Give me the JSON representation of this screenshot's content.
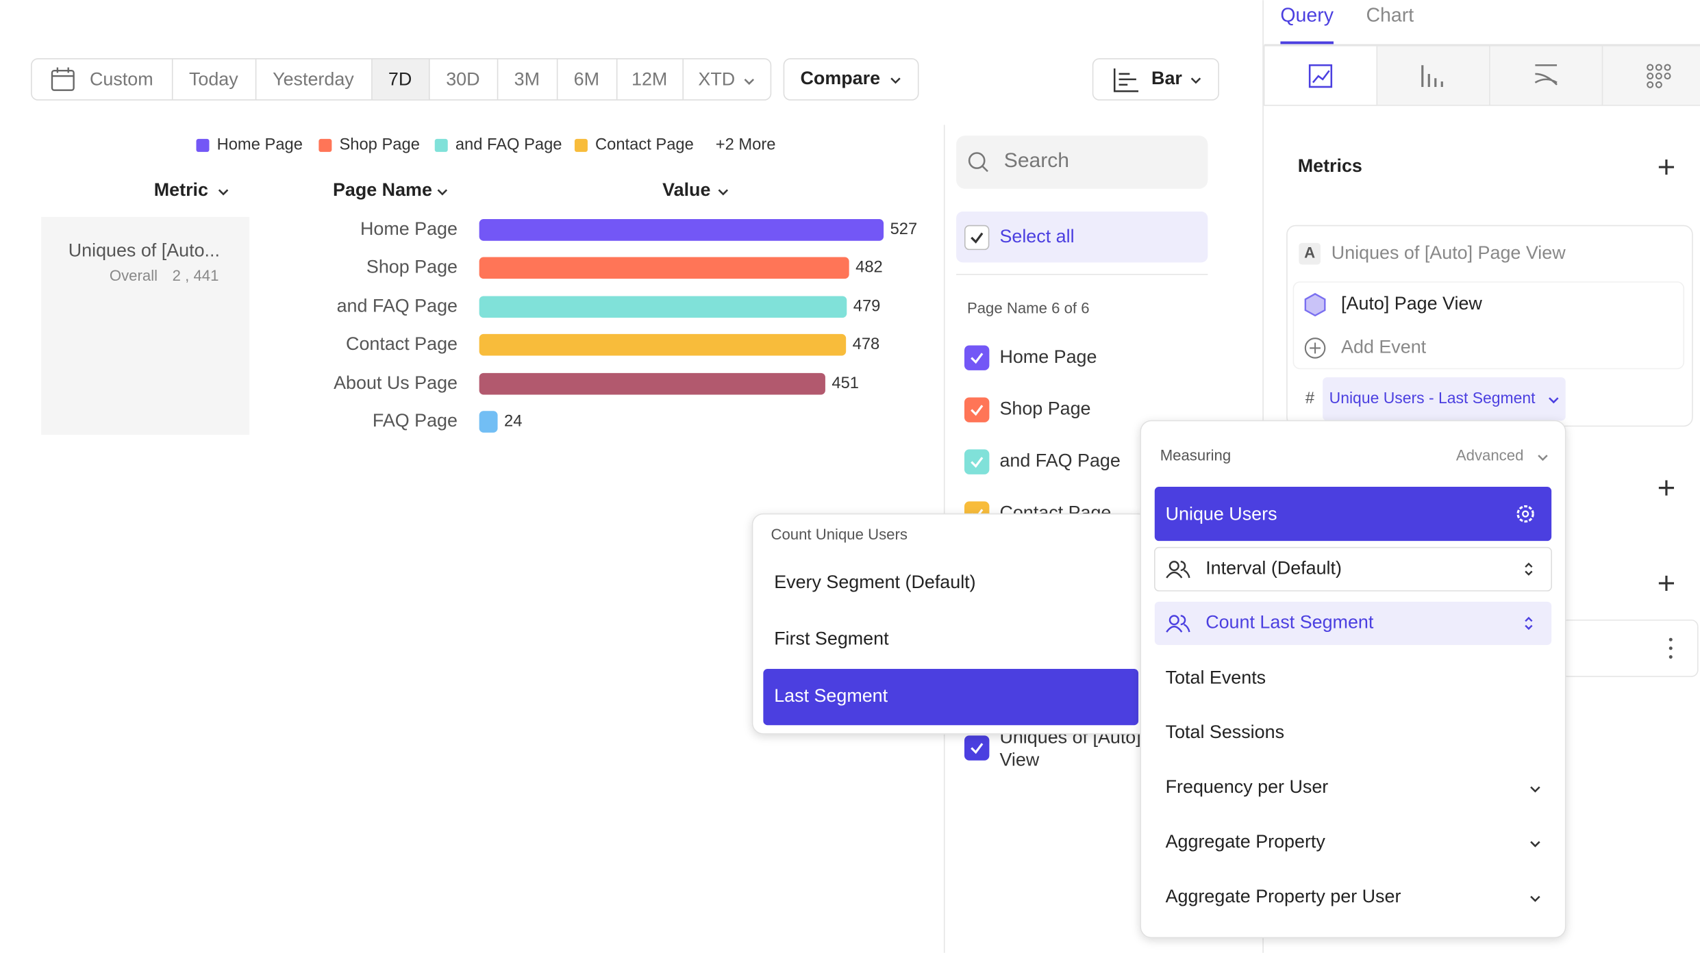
{
  "toolbar": {
    "ranges": [
      "Custom",
      "Today",
      "Yesterday",
      "7D",
      "30D",
      "3M",
      "6M",
      "12M",
      "XTD"
    ],
    "selected": "7D",
    "compare": "Compare",
    "chart_type": "Bar"
  },
  "legend": {
    "items": [
      {
        "name": "Home Page",
        "color": "#7357f6"
      },
      {
        "name": "Shop Page",
        "color": "#ff7557"
      },
      {
        "name": "and FAQ Page",
        "color": "#80e1d9"
      },
      {
        "name": "Contact Page",
        "color": "#f8bc3b"
      }
    ],
    "more": "+2 More"
  },
  "table": {
    "headers": [
      "Metric",
      "Page Name",
      "Value"
    ],
    "metric": {
      "name": "Uniques of [Auto...",
      "overall_label": "Overall",
      "overall": "2 , 441"
    }
  },
  "chart_data": {
    "type": "bar",
    "orientation": "horizontal",
    "categories": [
      "Home Page",
      "Shop Page",
      "and FAQ Page",
      "Contact Page",
      "About Us Page",
      "FAQ Page"
    ],
    "values": [
      527,
      482,
      479,
      478,
      451,
      24
    ],
    "colors": [
      "#7357f6",
      "#ff7557",
      "#80e1d9",
      "#f8bc3b",
      "#b2596e",
      "#72bef4"
    ]
  },
  "filter": {
    "search_placeholder": "Search",
    "select_all": "Select all",
    "heading": "Page Name 6 of 6",
    "items": [
      {
        "label": "Home Page",
        "color": "#7357f6"
      },
      {
        "label": "Shop Page",
        "color": "#ff7557"
      },
      {
        "label": "and FAQ Page",
        "color": "#80e1d9"
      },
      {
        "label": "Contact Page",
        "color": "#f8bc3b"
      }
    ],
    "metric_item": {
      "lines": [
        "Uniques of [Auto] Page",
        "View"
      ],
      "color": "#4b3fe0"
    }
  },
  "sidebar": {
    "tabs": [
      "Query",
      "Chart"
    ],
    "active_tab": "Query",
    "metrics_heading": "Metrics",
    "metric": {
      "letter": "A",
      "name": "Uniques of [Auto] Page View",
      "event": "[Auto] Page View",
      "add_event": "Add Event",
      "measure_symbol": "#",
      "measure": "Unique Users - Last Segment"
    }
  },
  "count_menu": {
    "title": "Count Unique Users",
    "options": [
      "Every Segment (Default)",
      "First Segment",
      "Last Segment"
    ],
    "selected": "Last Segment"
  },
  "measuring_menu": {
    "title": "Measuring",
    "advanced": "Advanced",
    "selected": "Unique Users",
    "interval": "Interval (Default)",
    "count": "Count Last Segment",
    "options": [
      "Total Events",
      "Total Sessions",
      "Frequency per User",
      "Aggregate Property",
      "Aggregate Property per User"
    ]
  }
}
